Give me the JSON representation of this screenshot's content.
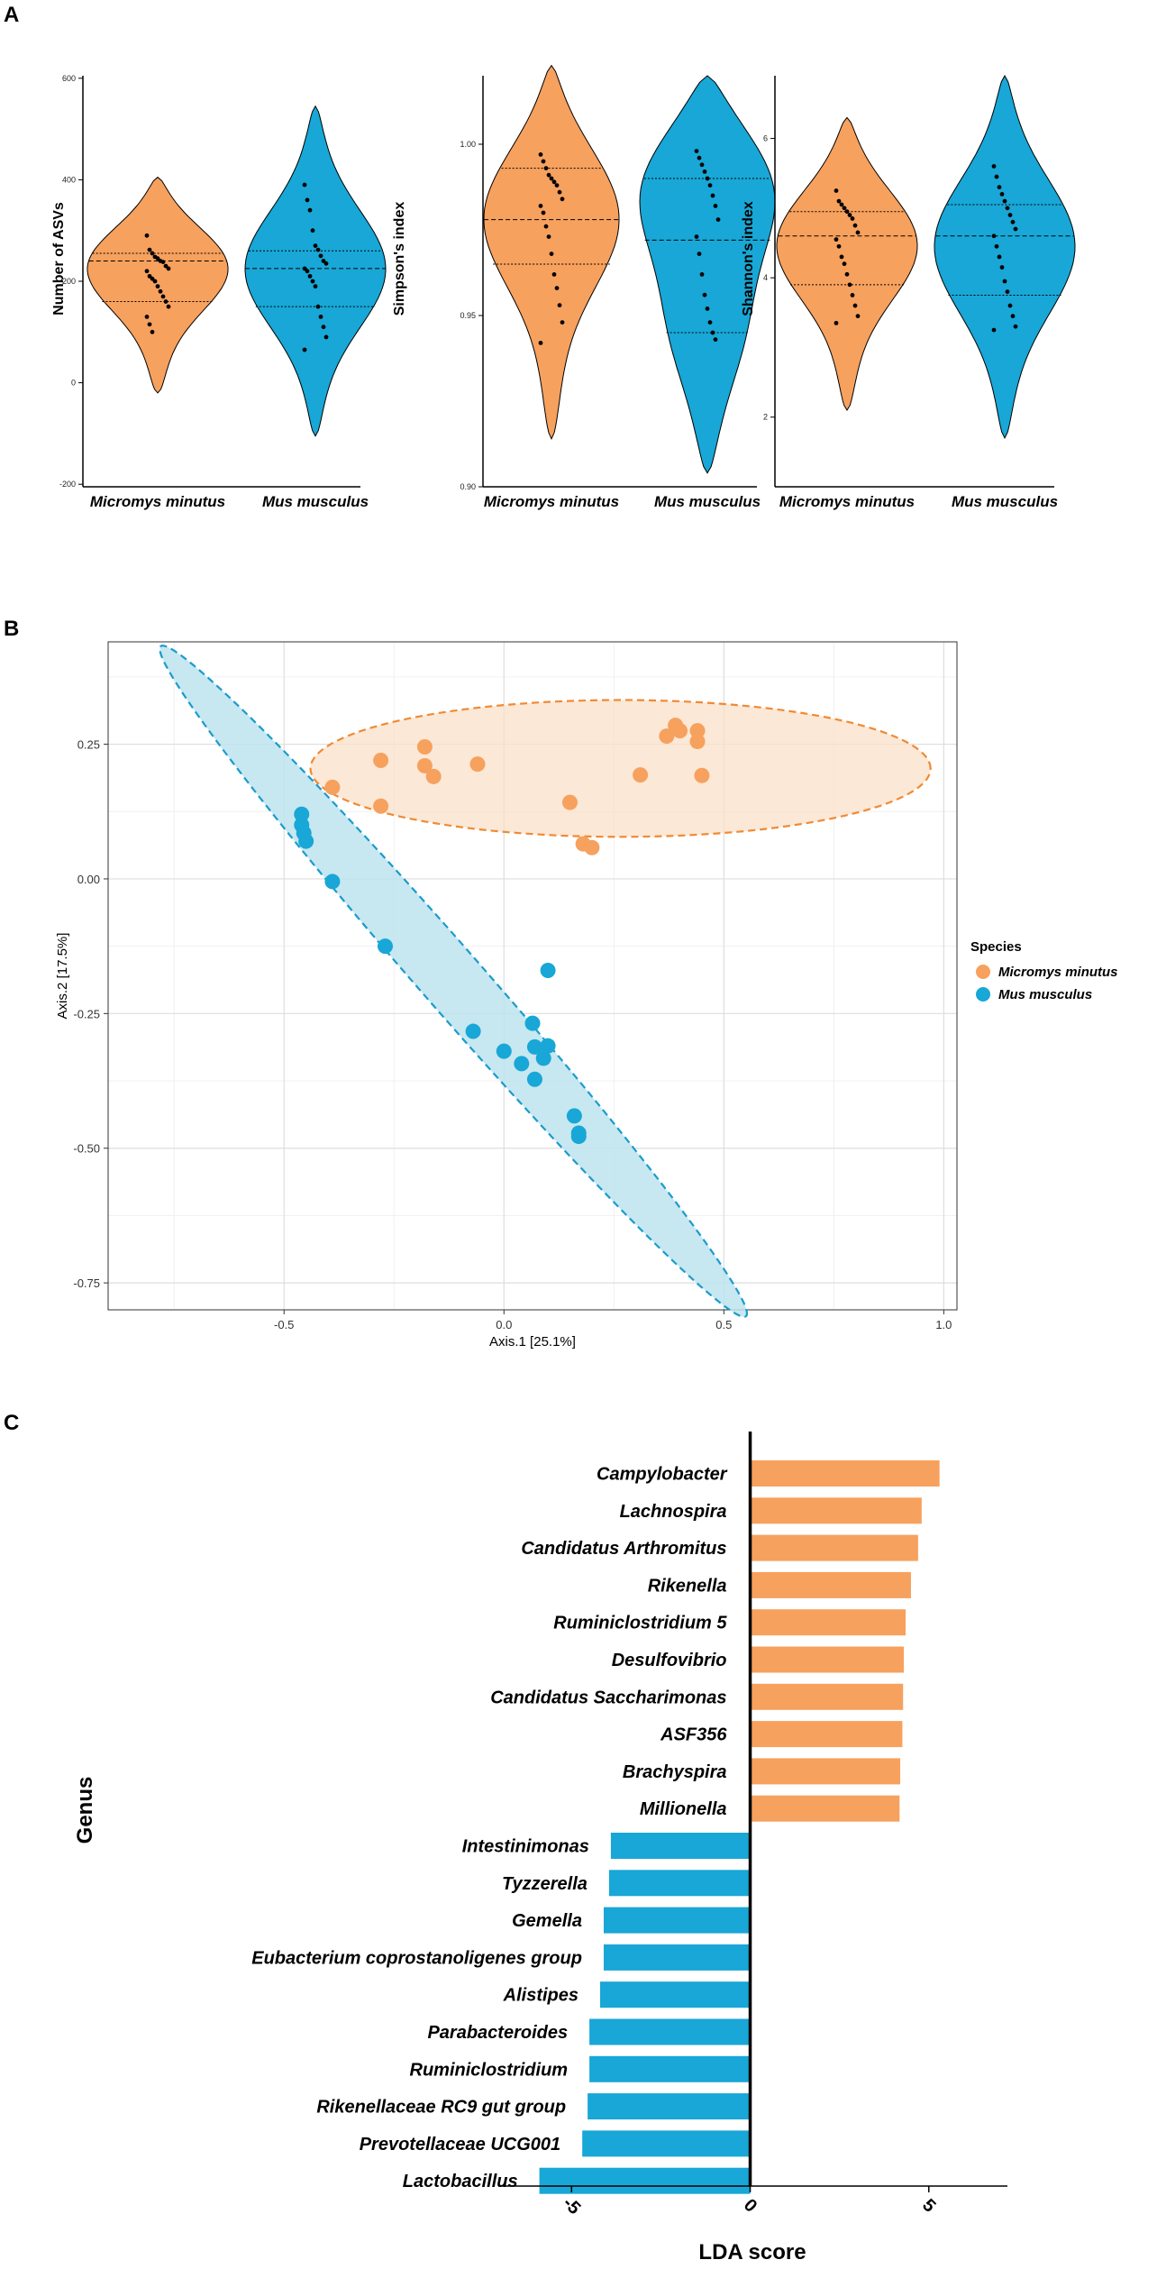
{
  "panels": {
    "a": "A",
    "b": "B",
    "c": "C"
  },
  "colors": {
    "orange": "#F7A15E",
    "blue": "#18A7D6",
    "orange_fill": "#FAE0C8",
    "blue_fill": "#BDE3EF",
    "orange_dash": "#F08A34",
    "blue_dash": "#1A9CCB"
  },
  "chart_data": [
    {
      "id": "violin-asvs",
      "type": "violin",
      "ylabel": "Number of ASVs",
      "categories": [
        "Micromys minutus",
        "Mus musculus"
      ],
      "yticks": [
        600,
        400,
        200,
        0,
        -200
      ],
      "ylim": [
        -205,
        605
      ],
      "violins": [
        {
          "species": "Micromys minutus",
          "color": "orange",
          "min": -20,
          "max": 405,
          "mode": 250,
          "quartiles": [
            160,
            240,
            255
          ],
          "points": [
            290,
            262,
            255,
            248,
            245,
            240,
            238,
            230,
            225,
            220,
            210,
            205,
            200,
            190,
            180,
            170,
            160,
            150,
            130,
            115,
            100
          ]
        },
        {
          "species": "Mus musculus",
          "color": "blue",
          "min": -105,
          "max": 545,
          "mode": 250,
          "quartiles": [
            150,
            225,
            260
          ],
          "points": [
            390,
            360,
            340,
            300,
            270,
            262,
            250,
            240,
            235,
            225,
            220,
            210,
            200,
            190,
            150,
            130,
            110,
            90,
            65
          ]
        }
      ]
    },
    {
      "id": "violin-simpson",
      "type": "violin",
      "ylabel": "Simpson's index",
      "categories": [
        "Micromys minutus",
        "Mus musculus"
      ],
      "yticks": [
        1.0,
        0.95,
        0.9
      ],
      "ytick_labels": [
        "1.00",
        "0.95",
        "0.90"
      ],
      "ylim": [
        0.9,
        1.02
      ],
      "violins": [
        {
          "species": "Micromys minutus",
          "color": "orange",
          "min": 0.914,
          "max": 1.023,
          "mode": 0.985,
          "quartiles": [
            0.965,
            0.978,
            0.993
          ],
          "points": [
            0.997,
            0.995,
            0.993,
            0.991,
            0.99,
            0.989,
            0.988,
            0.986,
            0.984,
            0.982,
            0.98,
            0.976,
            0.973,
            0.968,
            0.962,
            0.958,
            0.953,
            0.948,
            0.942
          ]
        },
        {
          "species": "Mus musculus",
          "color": "blue",
          "min": 0.904,
          "max": 1.02,
          "mode": 0.99,
          "quartiles": [
            0.945,
            0.972,
            0.99
          ],
          "points": [
            0.998,
            0.996,
            0.994,
            0.992,
            0.99,
            0.988,
            0.985,
            0.982,
            0.978,
            0.973,
            0.968,
            0.962,
            0.956,
            0.952,
            0.948,
            0.945,
            0.943
          ]
        }
      ]
    },
    {
      "id": "violin-shannon",
      "type": "violin",
      "ylabel": "Shannon's index",
      "categories": [
        "Micromys minutus",
        "Mus musculus"
      ],
      "yticks": [
        6,
        4,
        2
      ],
      "ylim": [
        1,
        6.9
      ],
      "violins": [
        {
          "species": "Micromys minutus",
          "color": "orange",
          "min": 2.1,
          "max": 6.3,
          "mode": 4.7,
          "quartiles": [
            3.9,
            4.6,
            4.95
          ],
          "points": [
            5.25,
            5.1,
            5.05,
            5.0,
            4.95,
            4.9,
            4.85,
            4.75,
            4.65,
            4.55,
            4.45,
            4.3,
            4.2,
            4.05,
            3.9,
            3.75,
            3.6,
            3.45,
            3.35
          ]
        },
        {
          "species": "Mus musculus",
          "color": "blue",
          "min": 1.7,
          "max": 6.9,
          "mode": 4.7,
          "quartiles": [
            3.75,
            4.6,
            5.05
          ],
          "points": [
            5.6,
            5.45,
            5.3,
            5.2,
            5.1,
            5.0,
            4.9,
            4.8,
            4.7,
            4.6,
            4.45,
            4.3,
            4.15,
            3.95,
            3.8,
            3.6,
            3.45,
            3.3,
            3.25
          ]
        }
      ]
    },
    {
      "id": "pcoa",
      "type": "scatter",
      "xlabel": "Axis.1   [25.1%]",
      "ylabel": "Axis.2   [17.5%]",
      "xlim": [
        -0.9,
        1.03
      ],
      "ylim": [
        -0.8,
        0.44
      ],
      "xticks": [
        -0.5,
        0.0,
        0.5,
        1.0
      ],
      "xtick_labels": [
        "-0.5",
        "0.0",
        "0.5",
        "1.0"
      ],
      "yticks": [
        0.25,
        0.0,
        -0.25,
        -0.5,
        -0.75
      ],
      "ytick_labels": [
        "0.25",
        "0.00",
        "-0.25",
        "-0.50",
        "-0.75"
      ],
      "legend": {
        "title": "Species",
        "position": "right"
      },
      "series": [
        {
          "name": "Micromys minutus",
          "color": "orange",
          "points": [
            [
              -0.39,
              0.17
            ],
            [
              -0.28,
              0.22
            ],
            [
              -0.28,
              0.135
            ],
            [
              -0.18,
              0.245
            ],
            [
              -0.18,
              0.21
            ],
            [
              -0.16,
              0.19
            ],
            [
              -0.06,
              0.213
            ],
            [
              0.15,
              0.142
            ],
            [
              0.18,
              0.065
            ],
            [
              0.2,
              0.058
            ],
            [
              0.31,
              0.193
            ],
            [
              0.37,
              0.265
            ],
            [
              0.39,
              0.285
            ],
            [
              0.4,
              0.275
            ],
            [
              0.44,
              0.255
            ],
            [
              0.44,
              0.275
            ],
            [
              0.45,
              0.192
            ]
          ],
          "ellipse": {
            "cx": 0.265,
            "cy": 0.205,
            "rx": 0.705,
            "ry": 0.127,
            "angle_deg": 0
          }
        },
        {
          "name": "Mus musculus",
          "color": "blue",
          "points": [
            [
              -0.46,
              0.12
            ],
            [
              -0.46,
              0.1
            ],
            [
              -0.455,
              0.085
            ],
            [
              -0.45,
              0.07
            ],
            [
              -0.39,
              -0.005
            ],
            [
              -0.27,
              -0.125
            ],
            [
              -0.07,
              -0.283
            ],
            [
              0.0,
              -0.32
            ],
            [
              0.04,
              -0.343
            ],
            [
              0.065,
              -0.268
            ],
            [
              0.07,
              -0.312
            ],
            [
              0.07,
              -0.372
            ],
            [
              0.09,
              -0.333
            ],
            [
              0.1,
              -0.31
            ],
            [
              0.1,
              -0.17
            ],
            [
              0.16,
              -0.44
            ],
            [
              0.17,
              -0.472
            ],
            [
              0.17,
              -0.478
            ]
          ],
          "ellipse": {
            "cx": -0.115,
            "cy": -0.19,
            "rx": 0.911,
            "ry": 0.064,
            "angle_deg": -43
          }
        }
      ]
    },
    {
      "id": "lda",
      "type": "bar-horizontal",
      "xlabel": "LDA score",
      "ylabel": "Genus",
      "xlim": [
        -7.05,
        7.2
      ],
      "xticks": [
        -5,
        0,
        5
      ],
      "xtick_labels": [
        "-5",
        "0",
        "5"
      ],
      "categories": [
        "Campylobacter",
        "Lachnospira",
        "Candidatus Arthromitus",
        "Rikenella",
        "Ruminiclostridium 5",
        "Desulfovibrio",
        "Candidatus Saccharimonas",
        "ASF356",
        "Brachyspira",
        "Millionella",
        "Intestinimonas",
        "Tyzzerella",
        "Gemella",
        "Eubacterium coprostanoligenes group",
        "Alistipes",
        "Parabacteroides",
        "Ruminiclostridium",
        "Rikenellaceae RC9 gut group",
        "Prevotellaceae UCG001",
        "Lactobacillus"
      ],
      "values": [
        5.3,
        4.8,
        4.7,
        4.5,
        4.35,
        4.3,
        4.28,
        4.26,
        4.2,
        4.18,
        -3.9,
        -3.95,
        -4.1,
        -4.1,
        -4.2,
        -4.5,
        -4.5,
        -4.55,
        -4.7,
        -5.9
      ],
      "bar_colors": [
        "orange",
        "orange",
        "orange",
        "orange",
        "orange",
        "orange",
        "orange",
        "orange",
        "orange",
        "orange",
        "blue",
        "blue",
        "blue",
        "blue",
        "blue",
        "blue",
        "blue",
        "blue",
        "blue",
        "blue"
      ]
    }
  ]
}
